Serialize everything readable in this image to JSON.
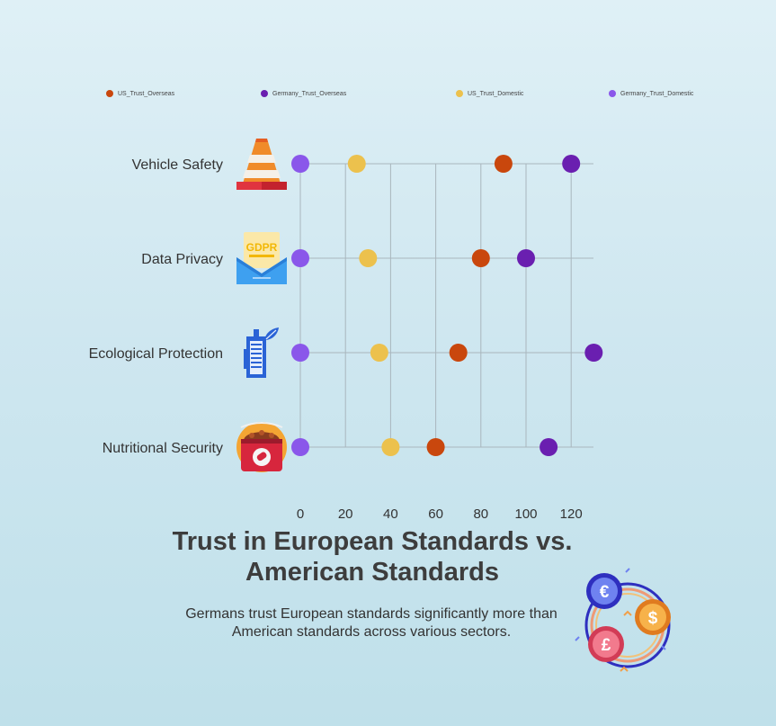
{
  "title_line1": "Trust in European Standards vs.",
  "title_line2": "American Standards",
  "subtitle": "Germans trust European standards significantly more than American standards across various sectors.",
  "category_icons": [
    "traffic-cone-icon",
    "gdpr-mail-icon",
    "eco-building-icon",
    "food-can-icon"
  ],
  "colors": {
    "US_Trust_Overseas": "#c9470d",
    "Germany_Trust_Overseas": "#6a1fb0",
    "US_Trust_Domestic": "#ecc14d",
    "Germany_Trust_Domestic": "#8a57ea"
  },
  "chart_data": {
    "type": "scatter",
    "categories": [
      "Vehicle Safety",
      "Data Privacy",
      "Ecological Protection",
      "Nutritional Security"
    ],
    "xlim": [
      0,
      130
    ],
    "xticks": [
      0,
      20,
      40,
      60,
      80,
      100,
      120
    ],
    "grid": true,
    "legend_position": "top",
    "series": [
      {
        "name": "US_Trust_Overseas",
        "values": [
          90,
          80,
          70,
          60
        ]
      },
      {
        "name": "Germany_Trust_Overseas",
        "values": [
          120,
          100,
          130,
          110
        ]
      },
      {
        "name": "US_Trust_Domestic",
        "values": [
          25,
          30,
          35,
          40
        ]
      },
      {
        "name": "Germany_Trust_Domestic",
        "values": [
          0,
          0,
          0,
          0
        ]
      }
    ]
  }
}
